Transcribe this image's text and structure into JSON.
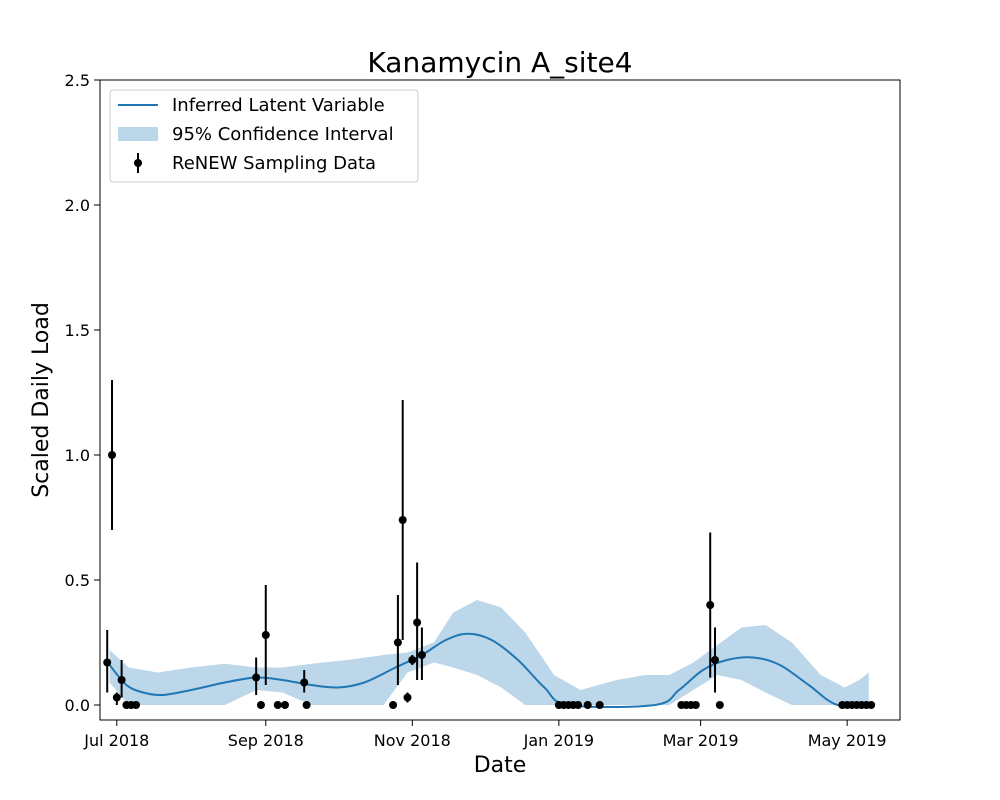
{
  "chart_data": {
    "type": "line",
    "title": "Kanamycin A_site4",
    "xlabel": "Date",
    "ylabel": "Scaled Daily Load",
    "x_axis_type": "date",
    "xlim": [
      "2018-06-24",
      "2019-05-23"
    ],
    "ylim": [
      -0.06,
      2.5
    ],
    "x_ticks": [
      {
        "date": "2018-07-01",
        "label": "Jul 2018"
      },
      {
        "date": "2018-09-01",
        "label": "Sep 2018"
      },
      {
        "date": "2018-11-01",
        "label": "Nov 2018"
      },
      {
        "date": "2019-01-01",
        "label": "Jan 2019"
      },
      {
        "date": "2019-03-01",
        "label": "Mar 2019"
      },
      {
        "date": "2019-05-01",
        "label": "May 2019"
      }
    ],
    "y_ticks": [
      {
        "value": 0.0,
        "label": "0.0"
      },
      {
        "value": 0.5,
        "label": "0.5"
      },
      {
        "value": 1.0,
        "label": "1.0"
      },
      {
        "value": 1.5,
        "label": "1.5"
      },
      {
        "value": 2.0,
        "label": "2.0"
      },
      {
        "value": 2.5,
        "label": "2.5"
      }
    ],
    "grid": false,
    "legend_position": "upper-left",
    "colors": {
      "latent": "#1f77b4",
      "ci": "#bcd6ea",
      "sampling": "#000000"
    },
    "series": [
      {
        "name": "Inferred Latent Variable",
        "kind": "line",
        "points": [
          {
            "x": "2018-06-28",
            "y": 0.16
          },
          {
            "x": "2018-07-05",
            "y": 0.08
          },
          {
            "x": "2018-07-12",
            "y": 0.05
          },
          {
            "x": "2018-07-20",
            "y": 0.04
          },
          {
            "x": "2018-08-01",
            "y": 0.06
          },
          {
            "x": "2018-08-15",
            "y": 0.09
          },
          {
            "x": "2018-08-28",
            "y": 0.11
          },
          {
            "x": "2018-09-08",
            "y": 0.1
          },
          {
            "x": "2018-09-20",
            "y": 0.08
          },
          {
            "x": "2018-10-01",
            "y": 0.07
          },
          {
            "x": "2018-10-12",
            "y": 0.09
          },
          {
            "x": "2018-10-25",
            "y": 0.15
          },
          {
            "x": "2018-11-05",
            "y": 0.2
          },
          {
            "x": "2018-11-15",
            "y": 0.26
          },
          {
            "x": "2018-11-24",
            "y": 0.285
          },
          {
            "x": "2018-12-04",
            "y": 0.26
          },
          {
            "x": "2018-12-15",
            "y": 0.18
          },
          {
            "x": "2018-12-26",
            "y": 0.07
          },
          {
            "x": "2019-01-05",
            "y": 0.0
          },
          {
            "x": "2019-02-10",
            "y": 0.0
          },
          {
            "x": "2019-02-20",
            "y": 0.06
          },
          {
            "x": "2019-03-02",
            "y": 0.14
          },
          {
            "x": "2019-03-12",
            "y": 0.18
          },
          {
            "x": "2019-03-23",
            "y": 0.19
          },
          {
            "x": "2019-04-03",
            "y": 0.16
          },
          {
            "x": "2019-04-15",
            "y": 0.08
          },
          {
            "x": "2019-04-27",
            "y": 0.0
          },
          {
            "x": "2019-05-12",
            "y": 0.0
          }
        ]
      },
      {
        "name": "95% Confidence Interval",
        "kind": "band",
        "points": [
          {
            "x": "2018-06-28",
            "low": 0.09,
            "high": 0.22
          },
          {
            "x": "2018-07-06",
            "low": 0.0,
            "high": 0.15
          },
          {
            "x": "2018-07-18",
            "low": 0.0,
            "high": 0.13
          },
          {
            "x": "2018-08-01",
            "low": 0.0,
            "high": 0.15
          },
          {
            "x": "2018-08-15",
            "low": 0.0,
            "high": 0.165
          },
          {
            "x": "2018-08-28",
            "low": 0.06,
            "high": 0.15
          },
          {
            "x": "2018-09-08",
            "low": 0.05,
            "high": 0.15
          },
          {
            "x": "2018-09-20",
            "low": 0.0,
            "high": 0.165
          },
          {
            "x": "2018-10-05",
            "low": 0.0,
            "high": 0.18
          },
          {
            "x": "2018-10-20",
            "low": 0.0,
            "high": 0.2
          },
          {
            "x": "2018-10-30",
            "low": 0.13,
            "high": 0.21
          },
          {
            "x": "2018-11-10",
            "low": 0.17,
            "high": 0.25
          },
          {
            "x": "2018-11-18",
            "low": 0.15,
            "high": 0.37
          },
          {
            "x": "2018-11-28",
            "low": 0.12,
            "high": 0.42
          },
          {
            "x": "2018-12-08",
            "low": 0.07,
            "high": 0.39
          },
          {
            "x": "2018-12-18",
            "low": 0.0,
            "high": 0.29
          },
          {
            "x": "2018-12-30",
            "low": 0.0,
            "high": 0.12
          },
          {
            "x": "2019-01-10",
            "low": 0.0,
            "high": 0.06
          },
          {
            "x": "2019-01-25",
            "low": 0.0,
            "high": 0.1
          },
          {
            "x": "2019-02-06",
            "low": 0.0,
            "high": 0.12
          },
          {
            "x": "2019-02-16",
            "low": 0.0,
            "high": 0.12
          },
          {
            "x": "2019-02-26",
            "low": 0.06,
            "high": 0.17
          },
          {
            "x": "2019-03-08",
            "low": 0.12,
            "high": 0.24
          },
          {
            "x": "2019-03-18",
            "low": 0.1,
            "high": 0.31
          },
          {
            "x": "2019-03-28",
            "low": 0.05,
            "high": 0.32
          },
          {
            "x": "2019-04-08",
            "low": 0.0,
            "high": 0.25
          },
          {
            "x": "2019-04-20",
            "low": 0.0,
            "high": 0.12
          },
          {
            "x": "2019-04-30",
            "low": 0.0,
            "high": 0.07
          },
          {
            "x": "2019-05-06",
            "low": 0.0,
            "high": 0.1
          },
          {
            "x": "2019-05-10",
            "low": 0.0,
            "high": 0.13
          }
        ]
      },
      {
        "name": "ReNEW Sampling Data",
        "kind": "errorbar",
        "points": [
          {
            "x": "2018-06-27",
            "y": 0.17,
            "low": 0.05,
            "high": 0.3
          },
          {
            "x": "2018-06-29",
            "y": 1.0,
            "low": 0.7,
            "high": 1.3
          },
          {
            "x": "2018-07-01",
            "y": 0.03,
            "low": 0.0,
            "high": 0.05
          },
          {
            "x": "2018-07-03",
            "y": 0.1,
            "low": 0.03,
            "high": 0.18
          },
          {
            "x": "2018-07-05",
            "y": 0.0
          },
          {
            "x": "2018-07-07",
            "y": 0.0
          },
          {
            "x": "2018-07-09",
            "y": 0.0
          },
          {
            "x": "2018-08-28",
            "y": 0.11,
            "low": 0.04,
            "high": 0.19
          },
          {
            "x": "2018-08-30",
            "y": 0.0
          },
          {
            "x": "2018-09-01",
            "y": 0.28,
            "low": 0.08,
            "high": 0.48
          },
          {
            "x": "2018-09-06",
            "y": 0.0
          },
          {
            "x": "2018-09-09",
            "y": 0.0
          },
          {
            "x": "2018-09-17",
            "y": 0.09,
            "low": 0.05,
            "high": 0.14
          },
          {
            "x": "2018-09-18",
            "y": 0.0
          },
          {
            "x": "2018-10-24",
            "y": 0.0
          },
          {
            "x": "2018-10-26",
            "y": 0.25,
            "low": 0.08,
            "high": 0.44
          },
          {
            "x": "2018-10-28",
            "y": 0.74,
            "low": 0.26,
            "high": 1.22
          },
          {
            "x": "2018-10-30",
            "y": 0.03,
            "low": 0.01,
            "high": 0.05
          },
          {
            "x": "2018-11-01",
            "y": 0.18,
            "low": 0.16,
            "high": 0.2
          },
          {
            "x": "2018-11-03",
            "y": 0.33,
            "low": 0.1,
            "high": 0.57
          },
          {
            "x": "2018-11-05",
            "y": 0.2,
            "low": 0.1,
            "high": 0.31
          },
          {
            "x": "2019-01-01",
            "y": 0.0
          },
          {
            "x": "2019-01-03",
            "y": 0.0
          },
          {
            "x": "2019-01-05",
            "y": 0.0
          },
          {
            "x": "2019-01-07",
            "y": 0.0
          },
          {
            "x": "2019-01-09",
            "y": 0.0
          },
          {
            "x": "2019-01-13",
            "y": 0.0
          },
          {
            "x": "2019-01-18",
            "y": 0.0
          },
          {
            "x": "2019-02-21",
            "y": 0.0
          },
          {
            "x": "2019-02-23",
            "y": 0.0
          },
          {
            "x": "2019-02-25",
            "y": 0.0
          },
          {
            "x": "2019-02-27",
            "y": 0.0
          },
          {
            "x": "2019-03-05",
            "y": 0.4,
            "low": 0.11,
            "high": 0.69
          },
          {
            "x": "2019-03-07",
            "y": 0.18,
            "low": 0.05,
            "high": 0.31
          },
          {
            "x": "2019-03-09",
            "y": 0.0
          },
          {
            "x": "2019-04-29",
            "y": 0.0
          },
          {
            "x": "2019-05-01",
            "y": 0.0
          },
          {
            "x": "2019-05-03",
            "y": 0.0
          },
          {
            "x": "2019-05-05",
            "y": 0.0
          },
          {
            "x": "2019-05-07",
            "y": 0.0
          },
          {
            "x": "2019-05-09",
            "y": 0.0
          },
          {
            "x": "2019-05-11",
            "y": 0.0
          }
        ]
      }
    ]
  }
}
